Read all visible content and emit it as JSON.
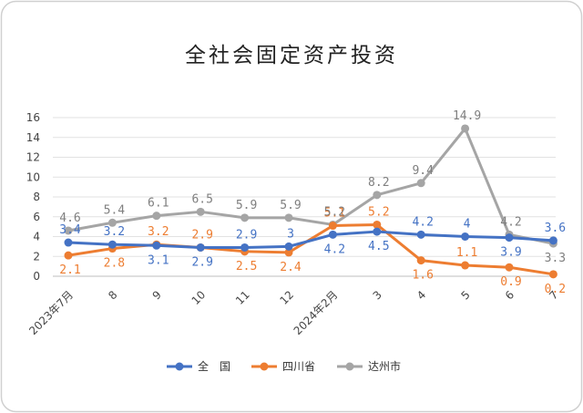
{
  "chart_data": {
    "type": "line",
    "title": "全社会固定资产投资",
    "categories": [
      "2023年7月",
      "8",
      "9",
      "10",
      "11",
      "12",
      "2024年2月",
      "3",
      "4",
      "5",
      "6",
      "7"
    ],
    "ylim": [
      0,
      16
    ],
    "yticks": [
      0,
      2,
      4,
      6,
      8,
      10,
      12,
      14,
      16
    ],
    "grid": true,
    "legend": "bottom",
    "series": [
      {
        "name": "全　国",
        "color": "#4472c4",
        "values": [
          3.4,
          3.2,
          3.1,
          2.9,
          2.9,
          3,
          4.2,
          4.5,
          4.2,
          4,
          3.9,
          3.6
        ],
        "labels": [
          "3.4",
          "3.2",
          "3.1",
          "2.9",
          "2.9",
          "3",
          "4.2",
          "4.5",
          "4.2",
          "4",
          "3.9",
          "3.6"
        ]
      },
      {
        "name": "四川省",
        "color": "#ed7d31",
        "values": [
          2.1,
          2.8,
          3.2,
          2.9,
          2.5,
          2.4,
          5.1,
          5.2,
          1.6,
          1.1,
          0.9,
          0.2
        ],
        "labels": [
          "2.1",
          "2.8",
          "3.2",
          "2.9",
          "2.5",
          "2.4",
          "5.1",
          "5.2",
          "1.6",
          "1.1",
          "0.9",
          "0.2"
        ]
      },
      {
        "name": "达州市",
        "color": "#a5a5a5",
        "values": [
          4.6,
          5.4,
          6.1,
          6.5,
          5.9,
          5.9,
          5.2,
          8.2,
          9.4,
          14.9,
          4.2,
          3.3
        ],
        "labels": [
          "4.6",
          "5.4",
          "6.1",
          "6.5",
          "5.9",
          "5.9",
          "5.2",
          "8.2",
          "9.4",
          "14.9",
          "4.2",
          "3.3"
        ]
      }
    ]
  }
}
